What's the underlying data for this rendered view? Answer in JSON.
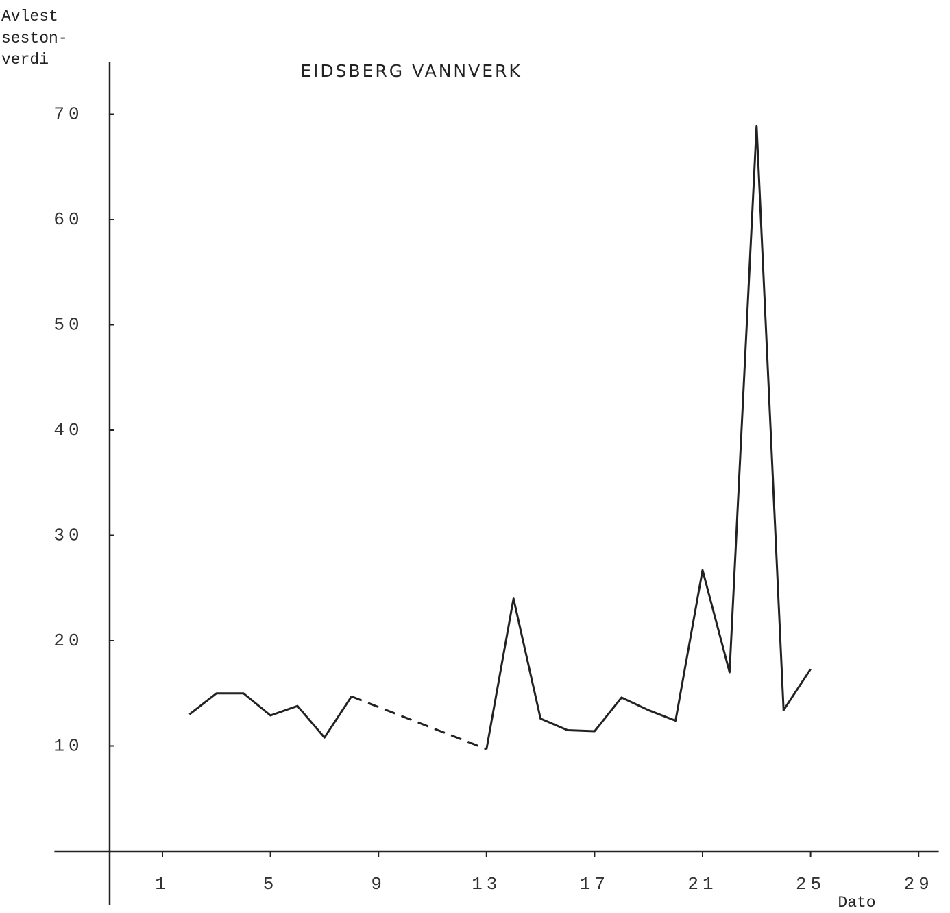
{
  "chart_data": {
    "type": "line",
    "title": "EIDSBERG VANNVERK",
    "ylabel": [
      "Avlest",
      "seston-",
      "verdi"
    ],
    "xlabel": "Dato",
    "series": [
      {
        "color": "#222222",
        "dash": false,
        "x": [
          2,
          3,
          4,
          5,
          6,
          7,
          8,
          9,
          10,
          11,
          12,
          13,
          14,
          15,
          16,
          17,
          18,
          19,
          20,
          21,
          22,
          23,
          24,
          25
        ],
        "values": [
          13.0,
          15.0,
          15.0,
          12.9,
          13.8,
          10.8,
          14.7,
          null,
          null,
          null,
          null,
          9.7,
          24.0,
          12.6,
          11.5,
          11.4,
          14.6,
          13.4,
          12.4,
          26.7,
          17.0,
          68.9,
          13.4,
          17.3
        ]
      },
      {
        "color": "#222222",
        "dash": true,
        "x": [
          8,
          13
        ],
        "values": [
          14.7,
          9.7
        ]
      }
    ],
    "xlim": [
      -3,
      30
    ],
    "xticks": [
      1,
      5,
      9,
      13,
      17,
      21,
      25,
      29
    ],
    "ylim": [
      -5,
      75
    ],
    "yticks": [
      10,
      20,
      30,
      40,
      50,
      60,
      70
    ],
    "grid": false
  }
}
